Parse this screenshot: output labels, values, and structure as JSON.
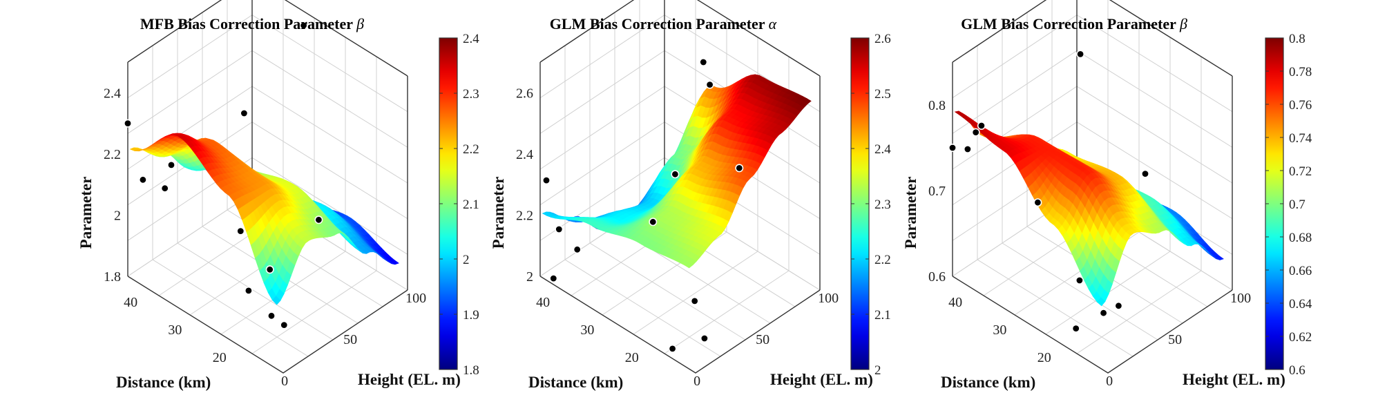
{
  "colormap": [
    "#00007f",
    "#0000ff",
    "#007fff",
    "#00ffff",
    "#7fff7f",
    "#ffff00",
    "#ff7f00",
    "#ff0000",
    "#7f0000"
  ],
  "chart_data": [
    {
      "type": "surface",
      "title": "MFB Bias Correction Parameter",
      "title_symbol": "β",
      "xlabel": "Distance (km)",
      "ylabel": "Height (EL. m)",
      "zlabel": "Parameter",
      "x_ticks": [
        "40",
        "30",
        "20"
      ],
      "y_ticks": [
        "0",
        "50",
        "100"
      ],
      "z_ticks": [
        "2.4",
        "2.2",
        "2",
        "1.8"
      ],
      "zlim": [
        1.8,
        2.5
      ],
      "colorbar": {
        "ticks": [
          "2.4",
          "2.3",
          "2.2",
          "2.1",
          "2",
          "1.9",
          "1.8"
        ],
        "range": [
          1.8,
          2.4
        ]
      },
      "surface": [
        [
          2.21,
          2.13,
          2.02,
          1.93,
          1.87
        ],
        [
          2.35,
          2.27,
          2.12,
          1.98,
          1.88
        ],
        [
          2.26,
          2.24,
          2.16,
          2.02,
          1.92
        ],
        [
          2.0,
          2.14,
          2.1,
          1.97,
          1.87
        ]
      ],
      "points": [
        {
          "x": 45,
          "y": 0,
          "z": 2.3
        },
        {
          "x": 43,
          "y": 5,
          "z": 2.12
        },
        {
          "x": 40,
          "y": 12,
          "z": 2.1
        },
        {
          "x": 38,
          "y": 10,
          "z": 2.2
        },
        {
          "x": 32,
          "y": 95,
          "z": 2.48
        },
        {
          "x": 30,
          "y": 40,
          "z": 2.36
        },
        {
          "x": 28,
          "y": 30,
          "z": 2.02
        },
        {
          "x": 23,
          "y": 75,
          "z": 1.98
        },
        {
          "x": 22,
          "y": 15,
          "z": 1.92
        },
        {
          "x": 20,
          "y": 25,
          "z": 1.98
        },
        {
          "x": 16,
          "y": 12,
          "z": 1.9
        },
        {
          "x": 14,
          "y": 15,
          "z": 1.88
        }
      ]
    },
    {
      "type": "surface",
      "title": "GLM Bias Correction Parameter",
      "title_symbol": "α",
      "xlabel": "Distance (km)",
      "ylabel": "Height (EL. m)",
      "zlabel": "Parameter",
      "x_ticks": [
        "40",
        "30",
        "20"
      ],
      "y_ticks": [
        "0",
        "50",
        "100"
      ],
      "z_ticks": [
        "2.6",
        "2.4",
        "2.2",
        "2"
      ],
      "zlim": [
        2.0,
        2.7
      ],
      "colorbar": {
        "ticks": [
          "2.6",
          "2.5",
          "2.4",
          "2.3",
          "2.2",
          "2.1",
          "2"
        ],
        "range": [
          2.0,
          2.6
        ]
      },
      "surface": [
        [
          2.2,
          2.12,
          2.02,
          2.0,
          2.01
        ],
        [
          2.26,
          2.22,
          2.2,
          2.3,
          2.45
        ],
        [
          2.3,
          2.33,
          2.42,
          2.52,
          2.58
        ],
        [
          2.32,
          2.36,
          2.48,
          2.56,
          2.6
        ]
      ],
      "points": [
        {
          "x": 45,
          "y": 5,
          "z": 2.3
        },
        {
          "x": 43,
          "y": 8,
          "z": 2.15
        },
        {
          "x": 42,
          "y": 0,
          "z": 2.02
        },
        {
          "x": 40,
          "y": 12,
          "z": 2.1
        },
        {
          "x": 34,
          "y": 92,
          "z": 2.55
        },
        {
          "x": 32,
          "y": 90,
          "z": 2.5
        },
        {
          "x": 30,
          "y": 55,
          "z": 2.32
        },
        {
          "x": 28,
          "y": 30,
          "z": 2.25
        },
        {
          "x": 22,
          "y": 78,
          "z": 2.35
        },
        {
          "x": 20,
          "y": 35,
          "z": 2.05
        },
        {
          "x": 18,
          "y": 10,
          "z": 1.98
        },
        {
          "x": 15,
          "y": 25,
          "z": 2.0
        }
      ]
    },
    {
      "type": "surface",
      "title": "GLM Bias Correction Parameter",
      "title_symbol": "β",
      "xlabel": "Distance (km)",
      "ylabel": "Height (EL. m)",
      "zlabel": "Parameter",
      "x_ticks": [
        "40",
        "30",
        "20"
      ],
      "y_ticks": [
        "0",
        "50",
        "100"
      ],
      "z_ticks": [
        "0.8",
        "0.7",
        "0.6"
      ],
      "zlim": [
        0.6,
        0.85
      ],
      "colorbar": {
        "ticks": [
          "0.8",
          "0.78",
          "0.76",
          "0.74",
          "0.72",
          "0.7",
          "0.68",
          "0.66",
          "0.64",
          "0.62",
          "0.6"
        ],
        "range": [
          0.6,
          0.8
        ]
      },
      "surface": [
        [
          0.79,
          0.74,
          0.7,
          0.66,
          0.64
        ],
        [
          0.78,
          0.77,
          0.73,
          0.68,
          0.64
        ],
        [
          0.73,
          0.77,
          0.74,
          0.69,
          0.65
        ],
        [
          0.67,
          0.73,
          0.71,
          0.67,
          0.63
        ]
      ],
      "points": [
        {
          "x": 45,
          "y": 0,
          "z": 0.75
        },
        {
          "x": 43,
          "y": 5,
          "z": 0.75
        },
        {
          "x": 42,
          "y": 8,
          "z": 0.77
        },
        {
          "x": 41,
          "y": 9,
          "z": 0.78
        },
        {
          "x": 33,
          "y": 60,
          "z": 0.84
        },
        {
          "x": 30,
          "y": 15,
          "z": 0.72
        },
        {
          "x": 24,
          "y": 80,
          "z": 0.71
        },
        {
          "x": 22,
          "y": 20,
          "z": 0.65
        },
        {
          "x": 20,
          "y": 10,
          "z": 0.61
        },
        {
          "x": 18,
          "y": 25,
          "z": 0.62
        },
        {
          "x": 16,
          "y": 30,
          "z": 0.63
        }
      ]
    }
  ]
}
